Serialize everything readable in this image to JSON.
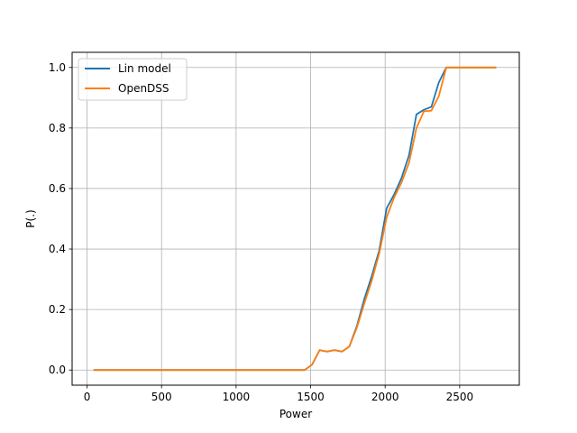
{
  "chart_data": {
    "type": "line",
    "xlabel": "Power",
    "ylabel": "P(.)",
    "xlim": [
      -100,
      2900
    ],
    "ylim": [
      -0.05,
      1.05
    ],
    "x_ticks": [
      0,
      500,
      1000,
      1500,
      2000,
      2500
    ],
    "x_tick_labels": [
      "0",
      "500",
      "1000",
      "1500",
      "2000",
      "2500"
    ],
    "y_ticks": [
      0.0,
      0.2,
      0.4,
      0.6,
      0.8,
      1.0
    ],
    "y_tick_labels": [
      "0.0",
      "0.2",
      "0.4",
      "0.6",
      "0.8",
      "1.0"
    ],
    "grid": true,
    "legend_position": "top-left",
    "series": [
      {
        "name": "Lin model",
        "color": "#1f77b4",
        "x": [
          50,
          100,
          200,
          300,
          400,
          500,
          600,
          700,
          800,
          900,
          1000,
          1100,
          1200,
          1300,
          1400,
          1460,
          1510,
          1560,
          1610,
          1660,
          1710,
          1760,
          1810,
          1860,
          1910,
          1960,
          2010,
          2060,
          2110,
          2160,
          2210,
          2260,
          2310,
          2360,
          2410,
          2460,
          2510,
          2560,
          2610,
          2660,
          2710,
          2740
        ],
        "y": [
          0,
          0,
          0,
          0,
          0,
          0,
          0,
          0,
          0,
          0,
          0,
          0,
          0,
          0,
          0,
          0,
          0.018,
          0.066,
          0.061,
          0.066,
          0.061,
          0.078,
          0.145,
          0.235,
          0.31,
          0.395,
          0.535,
          0.58,
          0.635,
          0.71,
          0.845,
          0.86,
          0.87,
          0.95,
          1.0,
          1.0,
          1.0,
          1.0,
          1.0,
          1.0,
          1.0,
          1.0
        ]
      },
      {
        "name": "OpenDSS",
        "color": "#ff7f0e",
        "x": [
          50,
          100,
          200,
          300,
          400,
          500,
          600,
          700,
          800,
          900,
          1000,
          1100,
          1200,
          1300,
          1400,
          1460,
          1510,
          1560,
          1610,
          1660,
          1710,
          1760,
          1810,
          1860,
          1910,
          1960,
          2010,
          2060,
          2110,
          2160,
          2210,
          2260,
          2310,
          2360,
          2410,
          2460,
          2510,
          2560,
          2610,
          2660,
          2710,
          2740
        ],
        "y": [
          0,
          0,
          0,
          0,
          0,
          0,
          0,
          0,
          0,
          0,
          0,
          0,
          0,
          0,
          0,
          0,
          0.018,
          0.066,
          0.061,
          0.066,
          0.061,
          0.078,
          0.14,
          0.22,
          0.295,
          0.385,
          0.505,
          0.57,
          0.62,
          0.685,
          0.8,
          0.855,
          0.857,
          0.905,
          1.0,
          1.0,
          1.0,
          1.0,
          1.0,
          1.0,
          1.0,
          1.0
        ]
      }
    ]
  }
}
